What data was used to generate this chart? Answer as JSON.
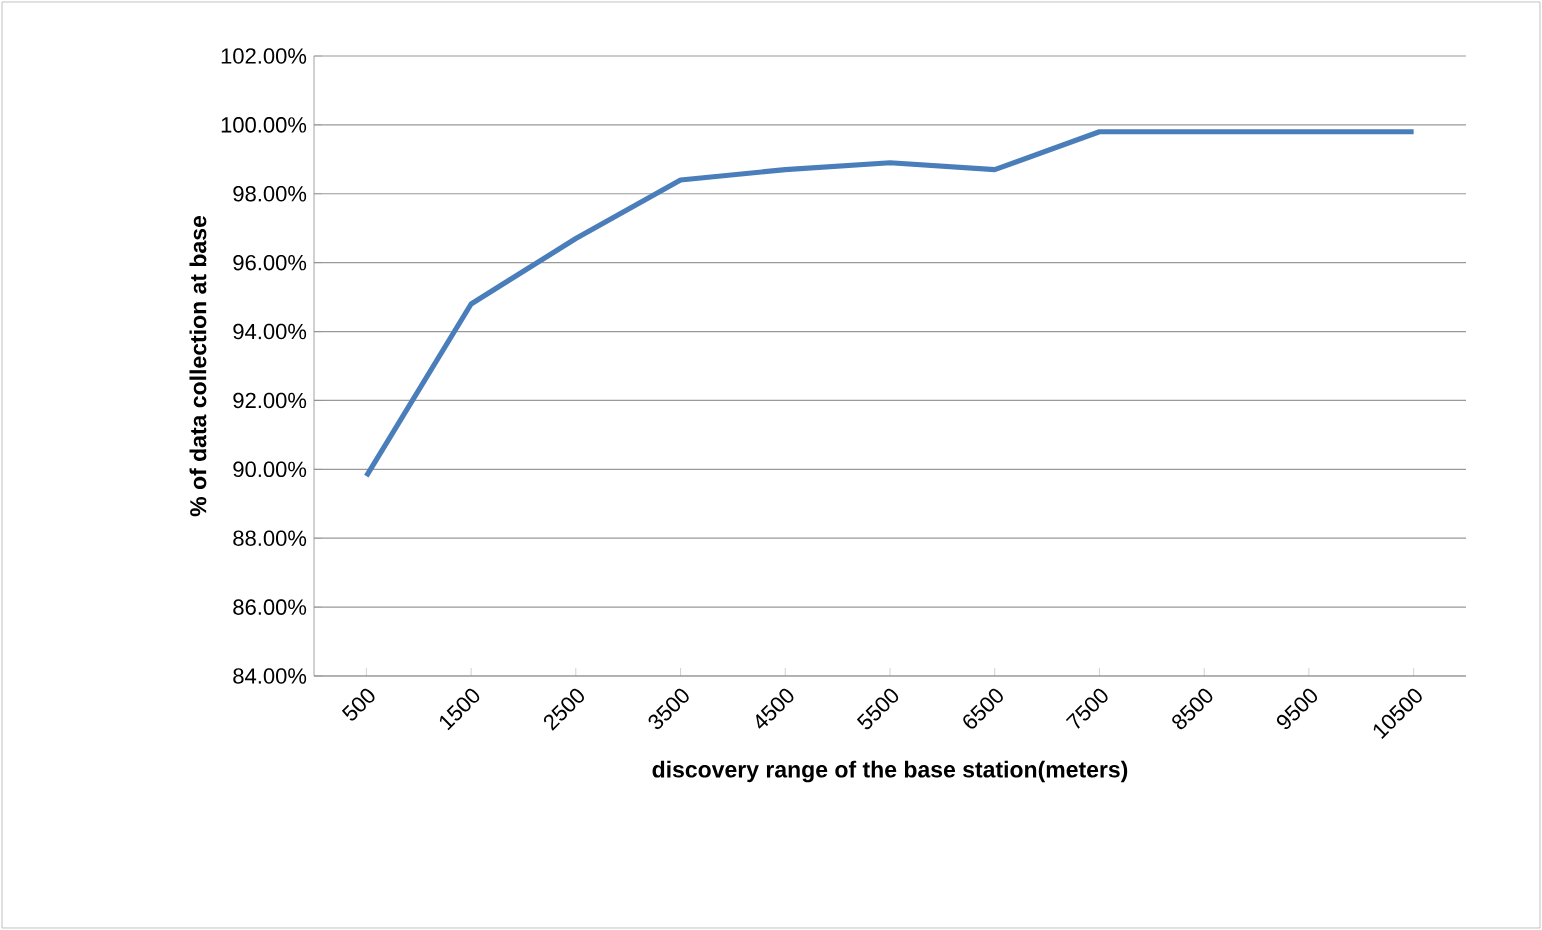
{
  "chart_data": {
    "type": "line",
    "xlabel": "discovery range of the base station(meters)",
    "ylabel": "% of data collection at base",
    "categories": [
      "500",
      "1500",
      "2500",
      "3500",
      "4500",
      "5500",
      "6500",
      "7500",
      "8500",
      "9500",
      "10500"
    ],
    "series": [
      {
        "color": "#4a7ebb",
        "values": [
          89.8,
          94.8,
          96.7,
          98.4,
          98.7,
          98.9,
          98.7,
          99.8,
          99.8,
          99.8,
          99.8
        ]
      }
    ],
    "ylim": [
      84,
      102
    ],
    "yticks": [
      {
        "value": 84,
        "label": "84.00%"
      },
      {
        "value": 86,
        "label": "86.00%"
      },
      {
        "value": 88,
        "label": "88.00%"
      },
      {
        "value": 90,
        "label": "90.00%"
      },
      {
        "value": 92,
        "label": "92.00%"
      },
      {
        "value": 94,
        "label": "94.00%"
      },
      {
        "value": 96,
        "label": "96.00%"
      },
      {
        "value": 98,
        "label": "98.00%"
      },
      {
        "value": 100,
        "label": "100.00%"
      },
      {
        "value": 102,
        "label": "102.00%"
      }
    ],
    "grid": "y"
  }
}
